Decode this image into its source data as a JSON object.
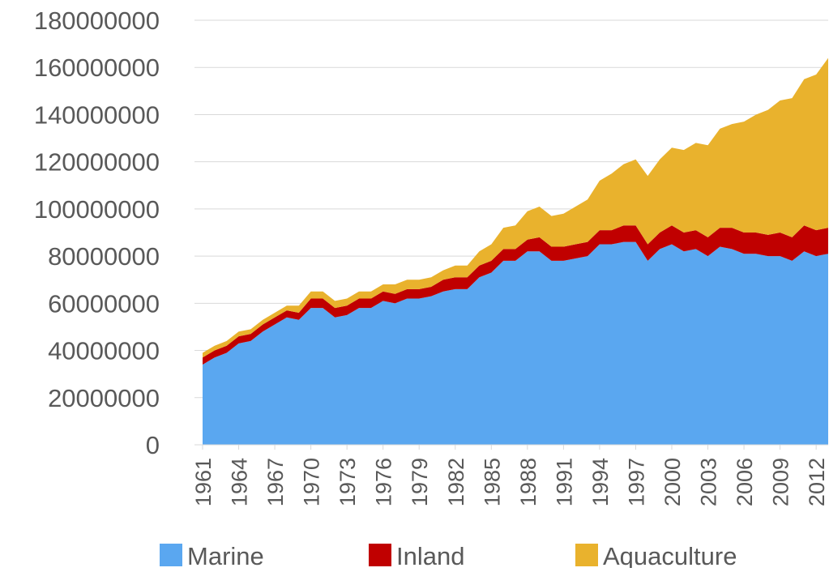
{
  "chart_data": {
    "type": "stacked-area",
    "x": [
      1961,
      1962,
      1963,
      1964,
      1965,
      1966,
      1967,
      1968,
      1969,
      1970,
      1971,
      1972,
      1973,
      1974,
      1975,
      1976,
      1977,
      1978,
      1979,
      1980,
      1981,
      1982,
      1983,
      1984,
      1985,
      1986,
      1987,
      1988,
      1989,
      1990,
      1991,
      1992,
      1993,
      1994,
      1995,
      1996,
      1997,
      1998,
      1999,
      2000,
      2001,
      2002,
      2003,
      2004,
      2005,
      2006,
      2007,
      2008,
      2009,
      2010,
      2011,
      2012,
      2013
    ],
    "xlim": [
      1961,
      2013
    ],
    "xticks": [
      1961,
      1964,
      1967,
      1970,
      1973,
      1976,
      1979,
      1982,
      1985,
      1988,
      1991,
      1994,
      1997,
      2000,
      2003,
      2006,
      2009,
      2012
    ],
    "ylim": [
      0,
      180000000
    ],
    "yticks": [
      0,
      20000000,
      40000000,
      60000000,
      80000000,
      100000000,
      120000000,
      140000000,
      160000000,
      180000000
    ],
    "grid": true,
    "legend": "bottom",
    "series": [
      {
        "name": "Marine",
        "color": "#5aa7f0",
        "values": [
          34000000,
          37000000,
          39000000,
          43000000,
          44000000,
          48000000,
          51000000,
          54000000,
          53000000,
          58000000,
          58000000,
          54000000,
          55000000,
          58000000,
          58000000,
          61000000,
          60000000,
          62000000,
          62000000,
          63000000,
          65000000,
          66000000,
          66000000,
          71000000,
          73000000,
          78000000,
          78000000,
          82000000,
          82000000,
          78000000,
          78000000,
          79000000,
          80000000,
          85000000,
          85000000,
          86000000,
          86000000,
          78000000,
          83000000,
          85000000,
          82000000,
          83000000,
          80000000,
          84000000,
          83000000,
          81000000,
          81000000,
          80000000,
          80000000,
          78000000,
          82000000,
          80000000,
          81000000
        ]
      },
      {
        "name": "Inland",
        "color": "#c00000",
        "values": [
          3000000,
          3000000,
          3000000,
          3000000,
          3000000,
          3000000,
          3000000,
          3000000,
          3000000,
          4000000,
          4000000,
          4000000,
          4000000,
          4000000,
          4000000,
          4000000,
          4000000,
          4000000,
          4000000,
          4000000,
          5000000,
          5000000,
          5000000,
          5000000,
          5000000,
          5000000,
          5000000,
          5000000,
          6000000,
          6000000,
          6000000,
          6000000,
          6000000,
          6000000,
          6000000,
          7000000,
          7000000,
          7000000,
          7000000,
          8000000,
          8000000,
          8000000,
          8000000,
          8000000,
          9000000,
          9000000,
          9000000,
          9000000,
          10000000,
          10000000,
          11000000,
          11000000,
          11000000
        ]
      },
      {
        "name": "Aquaculture",
        "color": "#e9b22d",
        "values": [
          2000000,
          2000000,
          2000000,
          2000000,
          2000000,
          2000000,
          2000000,
          2000000,
          3000000,
          3000000,
          3000000,
          3000000,
          3000000,
          3000000,
          3000000,
          3000000,
          4000000,
          4000000,
          4000000,
          4000000,
          4000000,
          5000000,
          5000000,
          6000000,
          7000000,
          9000000,
          10000000,
          12000000,
          13000000,
          13000000,
          14000000,
          16000000,
          18000000,
          21000000,
          24000000,
          26000000,
          28000000,
          29000000,
          31000000,
          33000000,
          35000000,
          37000000,
          39000000,
          42000000,
          44000000,
          47000000,
          50000000,
          53000000,
          56000000,
          59000000,
          62000000,
          66000000,
          72000000
        ]
      }
    ]
  }
}
